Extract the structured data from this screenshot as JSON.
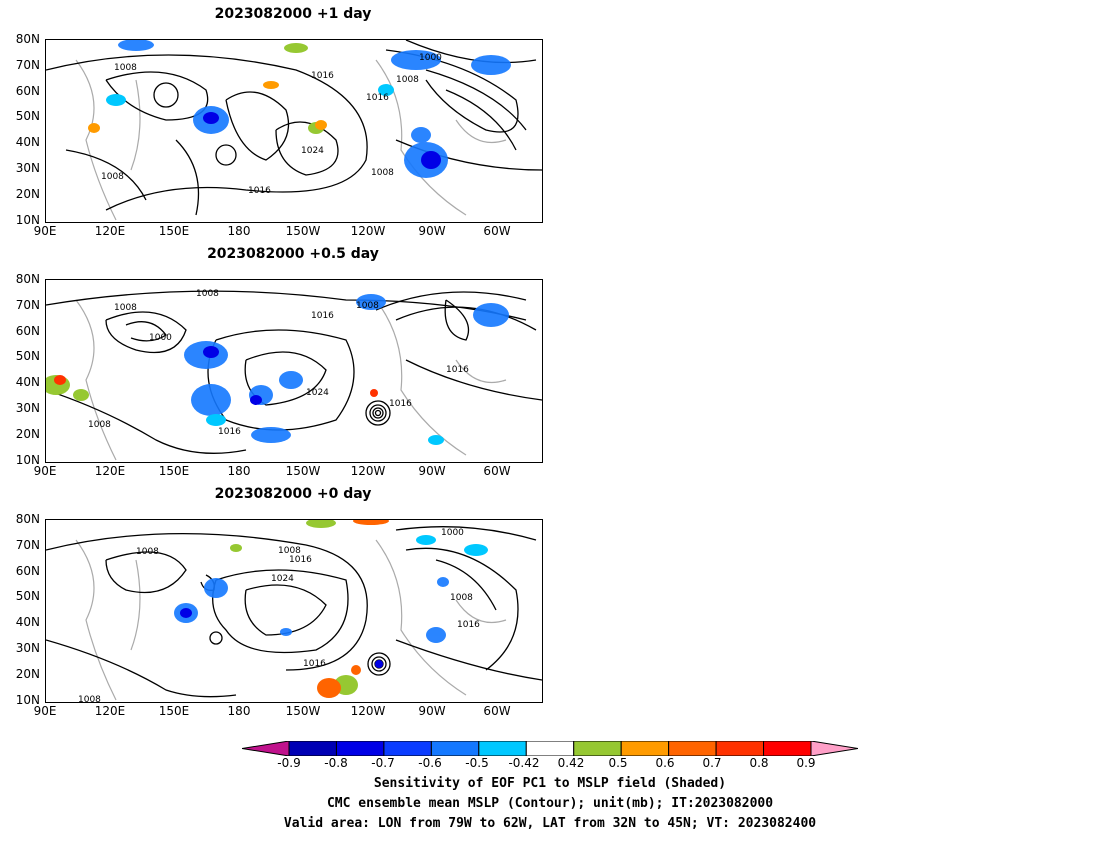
{
  "panels": [
    {
      "title": "2023082000  +1 day"
    },
    {
      "title": "2023082000  +0.5 day"
    },
    {
      "title": "2023082000  +0 day"
    }
  ],
  "lat_labels": [
    "80N",
    "70N",
    "60N",
    "50N",
    "40N",
    "30N",
    "20N",
    "10N"
  ],
  "lon_labels": [
    "90E",
    "120E",
    "150E",
    "180",
    "150W",
    "120W",
    "90W",
    "60W"
  ],
  "contour_labels": {
    "p1": [
      "1008",
      "1016",
      "1000",
      "1008",
      "1016",
      "1024",
      "1008",
      "1016",
      "1008"
    ],
    "p2": [
      "1008",
      "1008",
      "1016",
      "1008",
      "1000",
      "1024",
      "1016",
      "1016",
      "1016",
      "1008"
    ],
    "p3": [
      "1008",
      "1008",
      "1016",
      "1024",
      "1000",
      "1008",
      "1016",
      "1016",
      "1008"
    ]
  },
  "colorbar": {
    "ticks": [
      "-0.9",
      "-0.8",
      "-0.7",
      "-0.6",
      "-0.5",
      "-0.42",
      "0.42",
      "0.5",
      "0.6",
      "0.7",
      "0.8",
      "0.9"
    ],
    "colors": [
      "#c0128c",
      "#0000b4",
      "#0000e6",
      "#0a3cff",
      "#1478ff",
      "#00c8ff",
      "#ffffff",
      "#96c832",
      "#ff9b00",
      "#ff6400",
      "#ff3200",
      "#ff0000",
      "#ffa0c8"
    ]
  },
  "caption": {
    "line1": "Sensitivity of EOF PC1 to MSLP field (Shaded)",
    "line2": "CMC ensemble mean MSLP (Contour); unit(mb); IT:2023082000",
    "line3": "Valid area: LON from 79W to 62W, LAT from 32N to 45N; VT: 2023082400"
  }
}
